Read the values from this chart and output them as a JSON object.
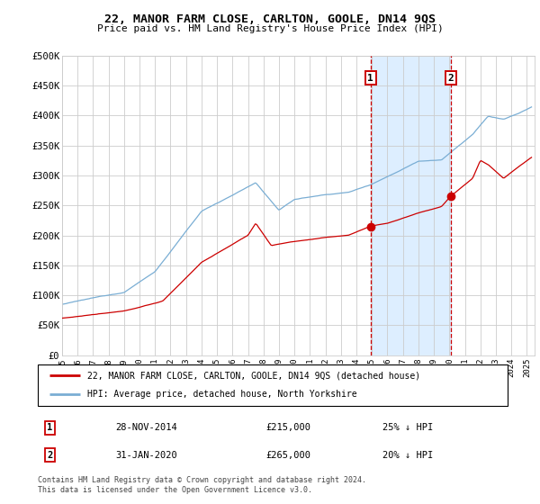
{
  "title": "22, MANOR FARM CLOSE, CARLTON, GOOLE, DN14 9QS",
  "subtitle": "Price paid vs. HM Land Registry's House Price Index (HPI)",
  "legend_label_red": "22, MANOR FARM CLOSE, CARLTON, GOOLE, DN14 9QS (detached house)",
  "legend_label_blue": "HPI: Average price, detached house, North Yorkshire",
  "transaction1_date": "28-NOV-2014",
  "transaction1_price": 215000,
  "transaction1_hpi": "25% ↓ HPI",
  "transaction2_date": "31-JAN-2020",
  "transaction2_price": 265000,
  "transaction2_hpi": "20% ↓ HPI",
  "footer": "Contains HM Land Registry data © Crown copyright and database right 2024.\nThis data is licensed under the Open Government Licence v3.0.",
  "red_color": "#cc0000",
  "blue_color": "#7aaed4",
  "shading_color": "#ddeeff",
  "background_color": "#ffffff",
  "grid_color": "#cccccc",
  "transaction1_x": 2014.91,
  "transaction2_x": 2020.08,
  "ylim_max": 500000,
  "yticks": [
    0,
    50000,
    100000,
    150000,
    200000,
    250000,
    300000,
    350000,
    400000,
    450000,
    500000
  ],
  "xticks": [
    1995,
    1996,
    1997,
    1998,
    1999,
    2000,
    2001,
    2002,
    2003,
    2004,
    2005,
    2006,
    2007,
    2008,
    2009,
    2010,
    2011,
    2012,
    2013,
    2014,
    2015,
    2016,
    2017,
    2018,
    2019,
    2020,
    2021,
    2022,
    2023,
    2024,
    2025
  ]
}
